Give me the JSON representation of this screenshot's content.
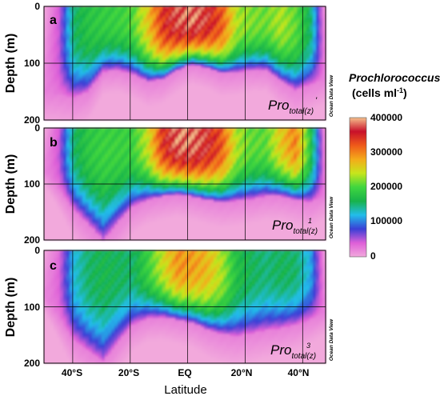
{
  "colors": {
    "scale": [
      "#f2a9dc",
      "#de5fd8",
      "#3a3fd6",
      "#22bdea",
      "#18b24a",
      "#3fd63f",
      "#c6e61c",
      "#f4ab1a",
      "#ef5a1a",
      "#c8102a",
      "#f5c08c"
    ],
    "background": "#ffffff",
    "grid": "#000000"
  },
  "figure": {
    "xlabel": "Latitude",
    "colorbar": {
      "title": "Prochlorococcus",
      "unit_prefix": "(cells ml",
      "unit_sup": "-1",
      "unit_suffix": ")",
      "ticks": [
        "400000",
        "300000",
        "200000",
        "100000",
        "0"
      ],
      "range": [
        0,
        400000
      ]
    }
  },
  "chart_data": [
    {
      "type": "heatmap",
      "panel_label": "a",
      "ylabel": "Depth (m)",
      "watermark": "Ocean Data View",
      "annotation": {
        "base": "Pro",
        "sub": "total(z)",
        "sup": "'"
      },
      "x_axis": {
        "ticks": [
          -40,
          -20,
          0,
          20,
          40
        ],
        "tick_labels": [
          "40°S",
          "20°S",
          "EQ",
          "20°N",
          "40°N"
        ],
        "range": [
          -50,
          48
        ]
      },
      "y_axis": {
        "ticks": [
          0,
          100,
          200
        ],
        "tick_labels": [
          "0",
          "100",
          "200"
        ],
        "range": [
          0,
          200
        ],
        "inverted": true
      },
      "grid": true,
      "bottom_depth_m": [
        152,
        155,
        160,
        150,
        115,
        112,
        120,
        132,
        128,
        112,
        102,
        108,
        118,
        116,
        112,
        112,
        132,
        147,
        137,
        127
      ],
      "surface_peak_cells_ml": [
        0,
        40000,
        150000,
        175000,
        185000,
        190000,
        200000,
        260000,
        340000,
        370000,
        380000,
        360000,
        320000,
        230000,
        215000,
        210000,
        230000,
        205000,
        150000,
        0
      ]
    },
    {
      "type": "heatmap",
      "panel_label": "b",
      "ylabel": "Depth (m)",
      "watermark": "Ocean Data View",
      "annotation": {
        "base": "Pro",
        "sub": "total(z)",
        "sup": "1"
      },
      "x_axis": {
        "ticks": [
          -40,
          -20,
          0,
          20,
          40
        ],
        "tick_labels": [
          "40°S",
          "20°S",
          "EQ",
          "20°N",
          "40°N"
        ],
        "range": [
          -50,
          48
        ]
      },
      "y_axis": {
        "ticks": [
          0,
          100,
          200
        ],
        "tick_labels": [
          "0",
          "100",
          "200"
        ],
        "range": [
          0,
          200
        ],
        "inverted": true
      },
      "grid": true,
      "bottom_depth_m": [
        75,
        108,
        145,
        172,
        200,
        168,
        140,
        128,
        122,
        118,
        122,
        128,
        132,
        130,
        127,
        122,
        122,
        128,
        132,
        120
      ],
      "surface_peak_cells_ml": [
        0,
        40000,
        150000,
        180000,
        190000,
        190000,
        190000,
        240000,
        340000,
        380000,
        380000,
        360000,
        320000,
        230000,
        205000,
        205000,
        260000,
        300000,
        175000,
        0
      ]
    },
    {
      "type": "heatmap",
      "panel_label": "c",
      "ylabel": "Depth (m)",
      "watermark": "Ocean Data View",
      "annotation": {
        "base": "Pro",
        "sub": "total(z)",
        "sup": "3"
      },
      "x_axis": {
        "ticks": [
          -40,
          -20,
          0,
          20,
          40
        ],
        "tick_labels": [
          "40°S",
          "20°S",
          "EQ",
          "20°N",
          "40°N"
        ],
        "range": [
          -50,
          48
        ]
      },
      "y_axis": {
        "ticks": [
          0,
          100,
          200
        ],
        "tick_labels": [
          "0",
          "100",
          "200"
        ],
        "range": [
          0,
          200
        ],
        "inverted": true
      },
      "grid": true,
      "bottom_depth_m": [
        80,
        118,
        158,
        178,
        197,
        162,
        132,
        120,
        118,
        123,
        128,
        140,
        148,
        152,
        147,
        142,
        138,
        132,
        122,
        110
      ],
      "surface_peak_cells_ml": [
        0,
        30000,
        120000,
        150000,
        160000,
        155000,
        150000,
        190000,
        240000,
        290000,
        285000,
        270000,
        230000,
        170000,
        155000,
        145000,
        155000,
        150000,
        110000,
        0
      ]
    }
  ]
}
